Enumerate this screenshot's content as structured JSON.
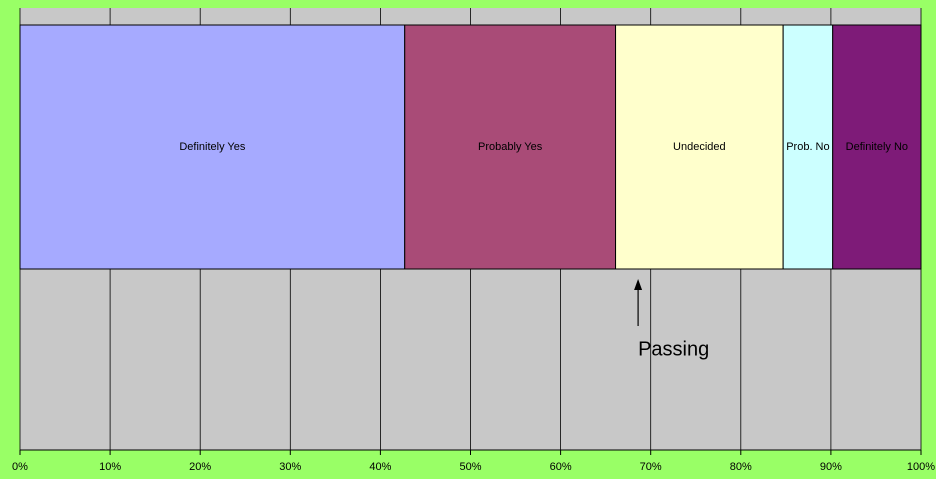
{
  "chart_data": {
    "type": "stacked-bar-horizontal",
    "xlim": [
      0,
      100
    ],
    "xticks": [
      {
        "value": 0,
        "label": "0%"
      },
      {
        "value": 10,
        "label": "10%"
      },
      {
        "value": 20,
        "label": "20%"
      },
      {
        "value": 30,
        "label": "30%"
      },
      {
        "value": 40,
        "label": "40%"
      },
      {
        "value": 50,
        "label": "50%"
      },
      {
        "value": 60,
        "label": "60%"
      },
      {
        "value": 70,
        "label": "70%"
      },
      {
        "value": 80,
        "label": "80%"
      },
      {
        "value": 90,
        "label": "90%"
      },
      {
        "value": 100,
        "label": "100%"
      }
    ],
    "grid": true,
    "series": [
      {
        "name": "Definitely Yes",
        "color": "#a6aaff",
        "values": [
          42.7
        ]
      },
      {
        "name": "Probably Yes",
        "color": "#a94b77",
        "values": [
          23.4
        ]
      },
      {
        "name": "Undecided",
        "color": "#ffffcc",
        "values": [
          18.6
        ]
      },
      {
        "name": "Prob. No",
        "color": "#ccffff",
        "values": [
          5.5
        ]
      },
      {
        "name": "Definitely No",
        "color": "#7e1b78",
        "values": [
          9.8
        ]
      }
    ],
    "annotations": [
      {
        "text": "Passing",
        "x": 68.6
      }
    ]
  }
}
